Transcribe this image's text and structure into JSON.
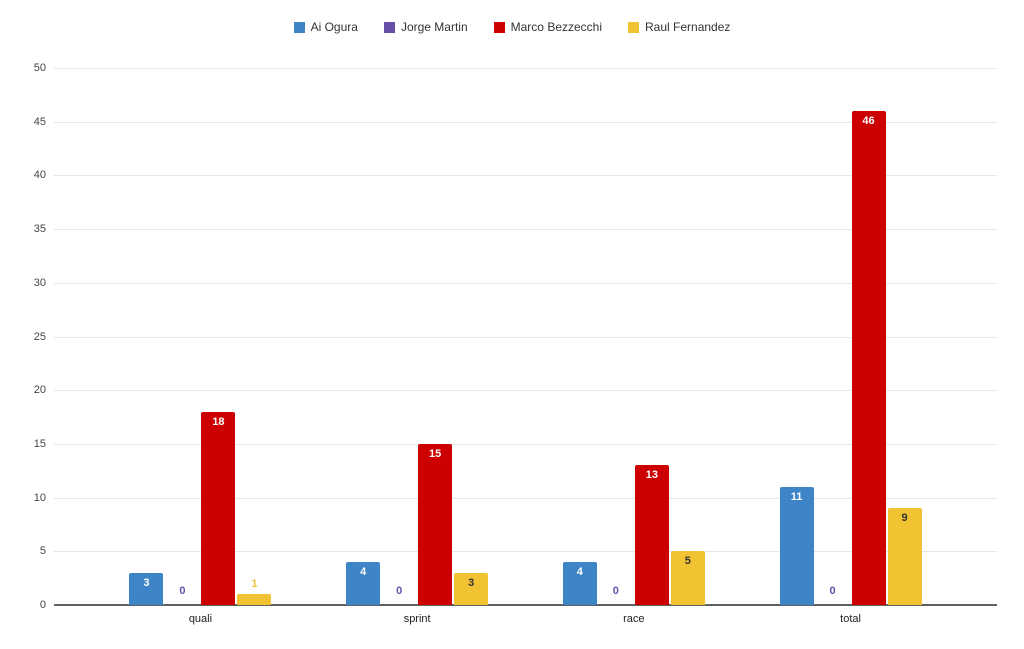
{
  "chart_data": {
    "type": "bar",
    "title": "",
    "xlabel": "",
    "ylabel": "",
    "categories": [
      "quali",
      "sprint",
      "race",
      "total"
    ],
    "series": [
      {
        "name": "Ai Ogura",
        "color": "#3d85c6",
        "label_color_inside": "#ffffff",
        "values": [
          3,
          4,
          4,
          11
        ]
      },
      {
        "name": "Jorge Martin",
        "color": "#674ea7",
        "label_color_inside": "#ffffff",
        "values": [
          0,
          0,
          0,
          0
        ]
      },
      {
        "name": "Marco Bezzecchi",
        "color": "#cc0000",
        "label_color_inside": "#ffffff",
        "values": [
          18,
          15,
          13,
          46
        ]
      },
      {
        "name": "Raul Fernandez",
        "color": "#f1c232",
        "label_color_inside": "#333333",
        "values": [
          1,
          3,
          5,
          9
        ]
      }
    ],
    "ylim": [
      0,
      50
    ],
    "yticks": [
      0,
      5,
      10,
      15,
      20,
      25,
      30,
      35,
      40,
      45,
      50
    ],
    "grid": true,
    "legend_position": "top",
    "bar_value_labels": true
  },
  "theme": {
    "background": "#ffffff",
    "gridline_color": "#e6e6e6",
    "axis_line_color": "#616161",
    "tick_label_color": "#444444",
    "category_label_color": "#222222",
    "legend_text_color": "#333333"
  }
}
